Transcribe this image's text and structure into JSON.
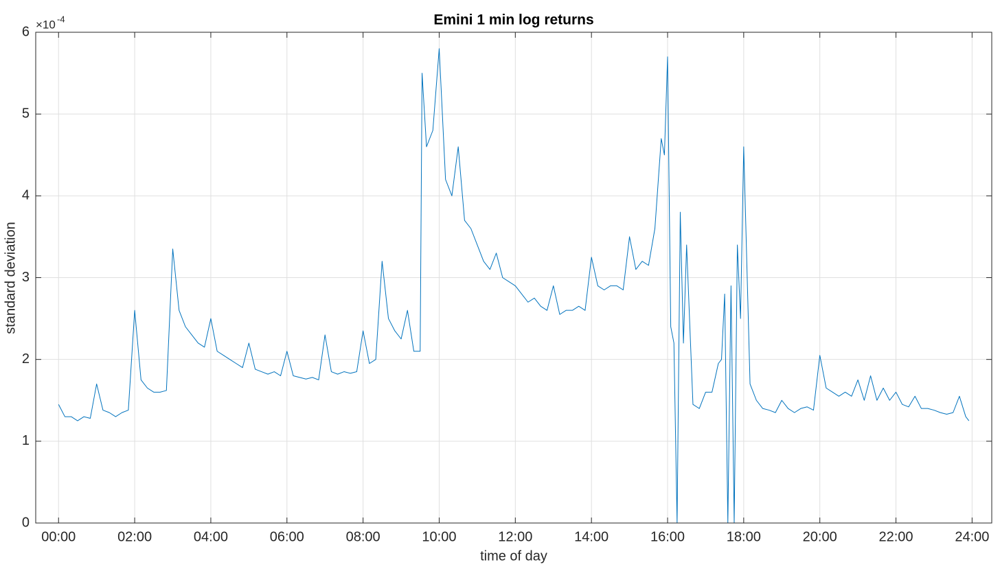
{
  "chart_data": {
    "type": "line",
    "title": "Emini 1 min log returns",
    "xlabel": "time of day",
    "ylabel": "standard deviation",
    "yaxis_scale_base": "×10",
    "yaxis_scale_exponent": "-4",
    "grid": true,
    "xlim": [
      -36,
      1471
    ],
    "ylim": [
      0,
      6
    ],
    "yticks": [
      0,
      1,
      2,
      3,
      4,
      5,
      6
    ],
    "xticks": [
      {
        "value": 0,
        "label": "00:00"
      },
      {
        "value": 120,
        "label": "02:00"
      },
      {
        "value": 240,
        "label": "04:00"
      },
      {
        "value": 360,
        "label": "06:00"
      },
      {
        "value": 480,
        "label": "08:00"
      },
      {
        "value": 600,
        "label": "10:00"
      },
      {
        "value": 720,
        "label": "12:00"
      },
      {
        "value": 840,
        "label": "14:00"
      },
      {
        "value": 960,
        "label": "16:00"
      },
      {
        "value": 1080,
        "label": "18:00"
      },
      {
        "value": 1200,
        "label": "20:00"
      },
      {
        "value": 1320,
        "label": "22:00"
      },
      {
        "value": 1440,
        "label": "24:00"
      }
    ],
    "x": [
      0,
      10,
      20,
      30,
      40,
      50,
      60,
      70,
      80,
      90,
      100,
      110,
      120,
      130,
      140,
      150,
      160,
      170,
      180,
      190,
      200,
      210,
      220,
      230,
      240,
      250,
      260,
      270,
      280,
      290,
      300,
      310,
      320,
      330,
      340,
      350,
      360,
      370,
      380,
      390,
      400,
      410,
      420,
      430,
      440,
      450,
      460,
      470,
      480,
      490,
      500,
      510,
      520,
      530,
      540,
      550,
      560,
      570,
      573,
      580,
      590,
      600,
      610,
      620,
      630,
      640,
      650,
      660,
      670,
      680,
      690,
      700,
      710,
      720,
      730,
      740,
      750,
      760,
      770,
      780,
      790,
      800,
      810,
      820,
      830,
      840,
      850,
      860,
      870,
      880,
      890,
      900,
      910,
      920,
      930,
      940,
      950,
      955,
      960,
      965,
      970,
      975,
      980,
      985,
      990,
      1000,
      1010,
      1020,
      1030,
      1040,
      1045,
      1050,
      1055,
      1060,
      1065,
      1070,
      1075,
      1080,
      1090,
      1100,
      1110,
      1120,
      1130,
      1140,
      1150,
      1160,
      1170,
      1180,
      1190,
      1200,
      1210,
      1220,
      1230,
      1240,
      1250,
      1260,
      1270,
      1280,
      1290,
      1300,
      1310,
      1320,
      1330,
      1340,
      1350,
      1360,
      1370,
      1380,
      1390,
      1400,
      1410,
      1420,
      1430,
      1435
    ],
    "series": [
      {
        "color": "#0072bd",
        "values": [
          1.45,
          1.3,
          1.3,
          1.25,
          1.3,
          1.28,
          1.7,
          1.38,
          1.35,
          1.3,
          1.35,
          1.38,
          2.6,
          1.75,
          1.65,
          1.6,
          1.6,
          1.62,
          3.35,
          2.6,
          2.4,
          2.3,
          2.2,
          2.15,
          2.5,
          2.1,
          2.05,
          2.0,
          1.95,
          1.9,
          2.2,
          1.88,
          1.85,
          1.82,
          1.85,
          1.8,
          2.1,
          1.8,
          1.78,
          1.76,
          1.78,
          1.75,
          2.3,
          1.85,
          1.82,
          1.85,
          1.83,
          1.85,
          2.35,
          1.95,
          2.0,
          3.2,
          2.5,
          2.35,
          2.25,
          2.6,
          2.1,
          2.1,
          5.5,
          4.6,
          4.8,
          5.8,
          4.2,
          4.0,
          4.6,
          3.7,
          3.6,
          3.4,
          3.2,
          3.1,
          3.3,
          3.0,
          2.95,
          2.9,
          2.8,
          2.7,
          2.75,
          2.65,
          2.6,
          2.9,
          2.55,
          2.6,
          2.6,
          2.65,
          2.6,
          3.25,
          2.9,
          2.85,
          2.9,
          2.9,
          2.85,
          3.5,
          3.1,
          3.2,
          3.15,
          3.6,
          4.7,
          4.5,
          5.7,
          2.4,
          2.2,
          0,
          3.8,
          2.2,
          3.4,
          1.45,
          1.4,
          1.6,
          1.6,
          1.95,
          2.0,
          2.8,
          0,
          2.9,
          0,
          3.4,
          2.5,
          4.6,
          1.7,
          1.5,
          1.4,
          1.38,
          1.35,
          1.5,
          1.4,
          1.35,
          1.4,
          1.42,
          1.38,
          2.05,
          1.65,
          1.6,
          1.55,
          1.6,
          1.55,
          1.75,
          1.5,
          1.8,
          1.5,
          1.65,
          1.5,
          1.6,
          1.45,
          1.42,
          1.55,
          1.4,
          1.4,
          1.38,
          1.35,
          1.33,
          1.35,
          1.55,
          1.3,
          1.25
        ]
      }
    ]
  }
}
